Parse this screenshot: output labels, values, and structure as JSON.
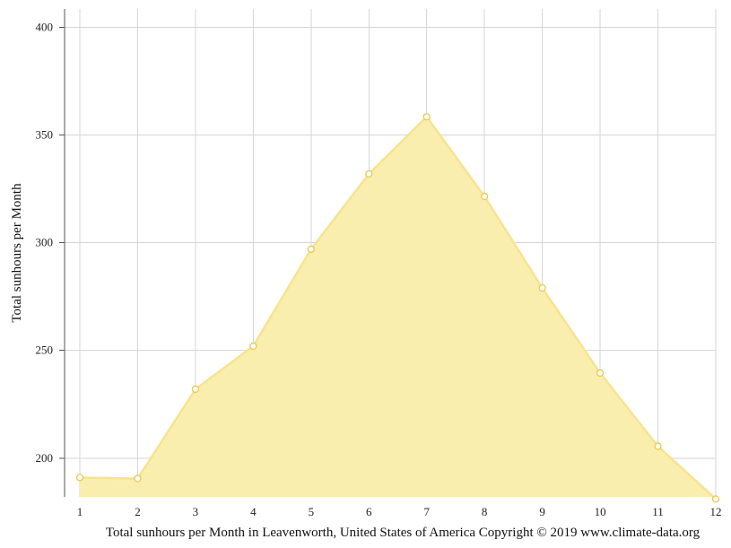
{
  "chart_data": {
    "type": "area",
    "x": [
      1,
      2,
      3,
      4,
      5,
      6,
      7,
      8,
      9,
      10,
      11,
      12
    ],
    "series": [
      {
        "values": [
          191,
          190.5,
          232,
          252,
          297,
          332,
          358.5,
          321.5,
          279,
          239.5,
          205.5,
          181
        ]
      }
    ],
    "ylim": [
      182,
      404
    ],
    "yticks": [
      200,
      250,
      300,
      350,
      400
    ],
    "xticks": [
      "1",
      "2",
      "3",
      "4",
      "5",
      "6",
      "7",
      "8",
      "9",
      "10",
      "11",
      "12"
    ],
    "ylabel": "Total sunhours per Month",
    "xlabel": "Total sunhours per Month in Leavenworth, United States of America Copyright © 2019 www.climate-data.org",
    "grid": true,
    "colors": {
      "fill": "#faeeaf",
      "line": "#f8e38c",
      "point_stroke": "#e8c94a"
    }
  }
}
